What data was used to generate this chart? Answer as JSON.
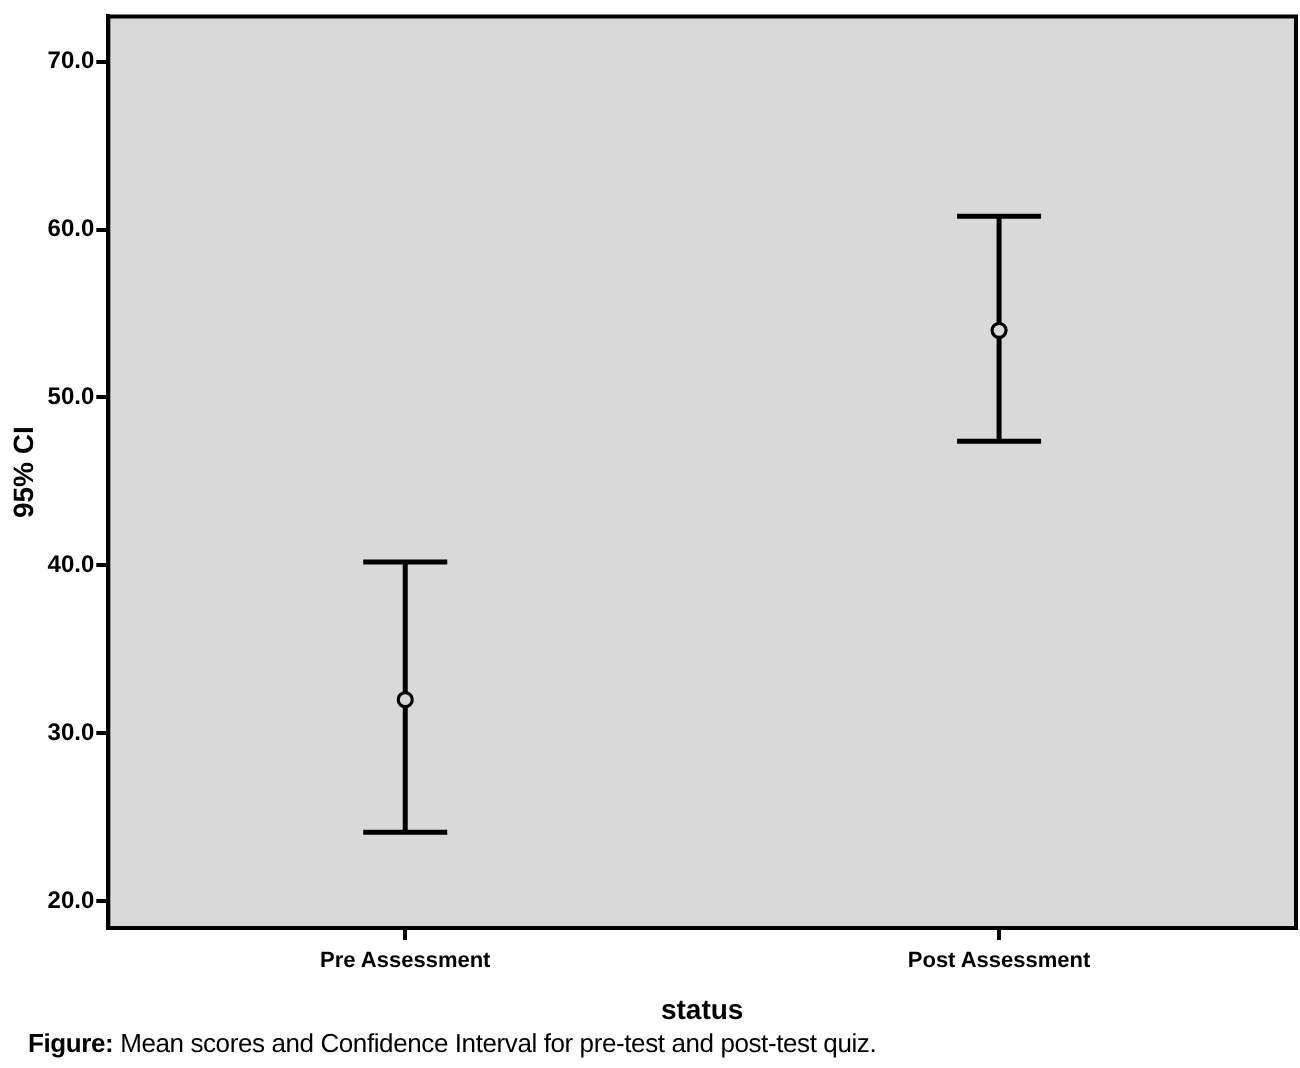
{
  "chart_data": {
    "type": "scatter",
    "categories": [
      "Pre Assessment",
      "Post Assessment"
    ],
    "series": [
      {
        "color": "#000000",
        "values": [
          32.0,
          54.0
        ],
        "errors": [
          [
            24.1,
            40.2
          ],
          [
            47.4,
            60.8
          ]
        ]
      }
    ],
    "xlabel": "status",
    "ylabel": "95% CI",
    "ylim": [
      18.4,
      72.7
    ],
    "yticks": [
      {
        "value": 20,
        "label": "20.0"
      },
      {
        "value": 30,
        "label": "30.0"
      },
      {
        "value": 40,
        "label": "40.0"
      },
      {
        "value": 50,
        "label": "50.0"
      },
      {
        "value": 60,
        "label": "60.0"
      },
      {
        "value": 70,
        "label": "70.0"
      }
    ],
    "marker": "circle",
    "grid": false,
    "legend": false,
    "annotations": [
      "Figure: Mean scores and Confidence Interval for pre-test and post-test quiz."
    ]
  }
}
